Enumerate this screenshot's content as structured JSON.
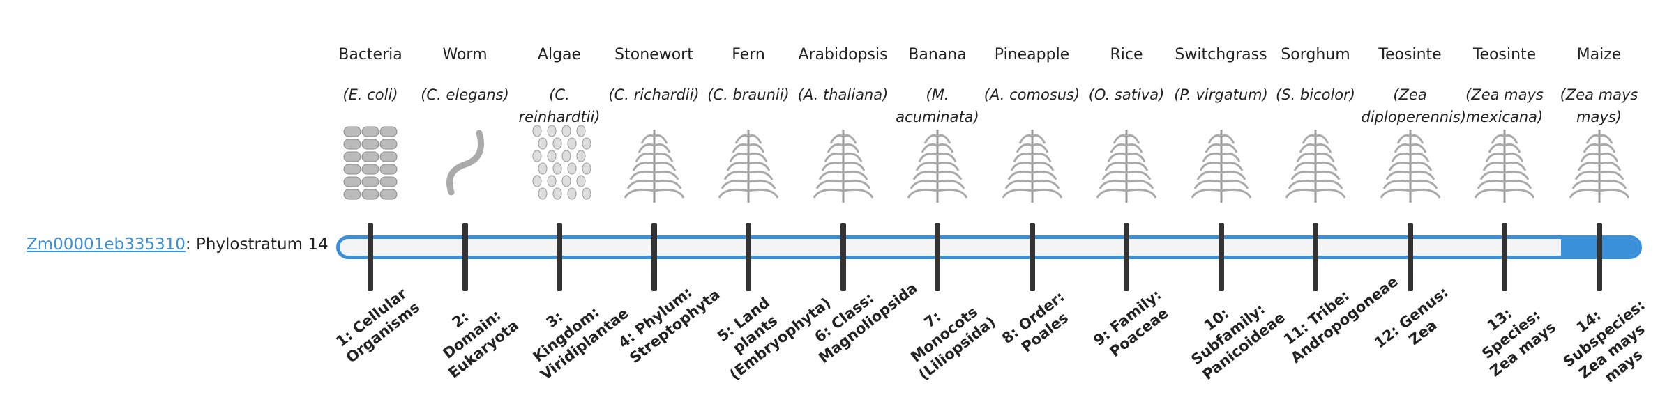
{
  "gene": {
    "id": "Zm00001eb335310",
    "suffix": ": Phylostratum 14",
    "stratum": 14
  },
  "organisms": [
    {
      "name": "Bacteria",
      "species": "(E. coli)",
      "stratum": "1: Cellular Organisms"
    },
    {
      "name": "Worm",
      "species": "(C. elegans)",
      "stratum": "2: Domain: Eukaryota"
    },
    {
      "name": "Algae",
      "species": "(C. reinhardtii)",
      "stratum": "3: Kingdom: Viridiplantae"
    },
    {
      "name": "Stonewort",
      "species": "(C. richardii)",
      "stratum": "4: Phylum: Streptophyta"
    },
    {
      "name": "Fern",
      "species": "(C. braunii)",
      "stratum": "5: Land plants (Embryophyta)"
    },
    {
      "name": "Arabidopsis",
      "species": "(A. thaliana)",
      "stratum": "6: Class: Magnoliopsida"
    },
    {
      "name": "Banana",
      "species": "(M. acuminata)",
      "stratum": "7: Monocots (Liliopsida)"
    },
    {
      "name": "Pineapple",
      "species": "(A. comosus)",
      "stratum": "8: Order: Poales"
    },
    {
      "name": "Rice",
      "species": "(O. sativa)",
      "stratum": "9: Family: Poaceae"
    },
    {
      "name": "Switchgrass",
      "species": "(P. virgatum)",
      "stratum": "10: Subfamily: Panicoideae"
    },
    {
      "name": "Sorghum",
      "species": "(S. bicolor)",
      "stratum": "11: Tribe: Andropogoneae"
    },
    {
      "name": "Teosinte",
      "species": "(Zea diploperennis)",
      "stratum": "12: Genus: Zea"
    },
    {
      "name": "Teosinte",
      "species": "(Zea mays mexicana)",
      "stratum": "13: Species: Zea mays"
    },
    {
      "name": "Maize",
      "species": "(Zea mays mays)",
      "stratum": "14: Subspecies: Zea mays mays"
    }
  ]
}
